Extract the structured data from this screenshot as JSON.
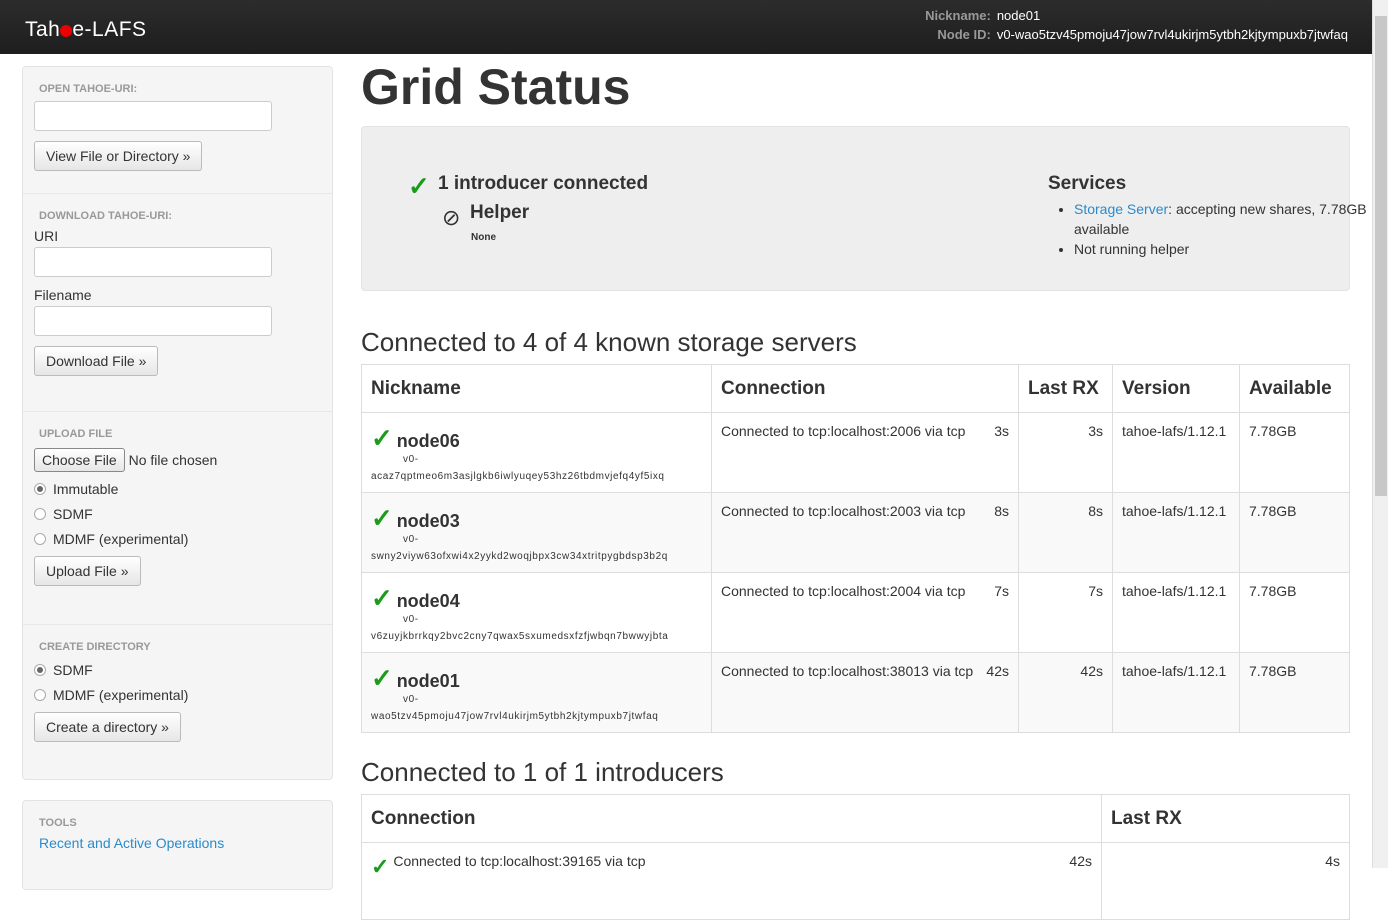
{
  "header": {
    "logo": "Tahoe-LAFS",
    "nickname_label": "Nickname:",
    "nickname": "node01",
    "nodeid_label": "Node ID:",
    "nodeid": "v0-wao5tzv45pmoju47jow7rvl4ukirjm5ytbh2kjtympuxb7jtwfaq"
  },
  "sidebar": {
    "open": {
      "header": "Open Tahoe-URI:",
      "button": "View File or Directory »"
    },
    "download": {
      "header": "Download Tahoe-URI:",
      "uri_label": "URI",
      "filename_label": "Filename",
      "button": "Download File »"
    },
    "upload": {
      "header": "Upload File",
      "choose": "Choose File",
      "no_file": "No file chosen",
      "options": [
        "Immutable",
        "SDMF",
        "MDMF (experimental)"
      ],
      "button": "Upload File »"
    },
    "mkdir": {
      "header": "Create Directory",
      "options": [
        "SDMF",
        "MDMF (experimental)"
      ],
      "button": "Create a directory »"
    },
    "tools": {
      "header": "Tools",
      "link": "Recent and Active Operations"
    }
  },
  "main": {
    "title": "Grid Status",
    "introducer_status": "1 introducer connected",
    "helper_title": "Helper",
    "helper_value": "None",
    "services_title": "Services",
    "services": {
      "storage_link": "Storage Server",
      "storage_text": ": accepting new shares, 7.78GB available",
      "helper": "Not running helper"
    },
    "servers_heading": "Connected to 4 of 4 known storage servers",
    "servers_columns": [
      "Nickname",
      "Connection",
      "Last RX",
      "Version",
      "Available"
    ],
    "servers": [
      {
        "nickname": "node06",
        "id_prefix": "v0-",
        "id": "acaz7qptmeo6m3asjlgkb6iwlyuqey53hz26tbdmvjefq4yf5ixq",
        "connection": "Connected to tcp:localhost:2006 via tcp",
        "since": "3s",
        "last_rx": "3s",
        "version": "tahoe-lafs/1.12.1",
        "available": "7.78GB"
      },
      {
        "nickname": "node03",
        "id_prefix": "v0-",
        "id": "swny2viyw63ofxwi4x2yykd2woqjbpx3cw34xtritpygbdsp3b2q",
        "connection": "Connected to tcp:localhost:2003 via tcp",
        "since": "8s",
        "last_rx": "8s",
        "version": "tahoe-lafs/1.12.1",
        "available": "7.78GB"
      },
      {
        "nickname": "node04",
        "id_prefix": "v0-",
        "id": "v6zuyjkbrrkqy2bvc2cny7qwax5sxumedsxfzfjwbqn7bwwyjbta",
        "connection": "Connected to tcp:localhost:2004 via tcp",
        "since": "7s",
        "last_rx": "7s",
        "version": "tahoe-lafs/1.12.1",
        "available": "7.78GB"
      },
      {
        "nickname": "node01",
        "id_prefix": "v0-",
        "id": "wao5tzv45pmoju47jow7rvl4ukirjm5ytbh2kjtympuxb7jtwfaq",
        "connection": "Connected to tcp:localhost:38013 via tcp",
        "since": "42s",
        "last_rx": "42s",
        "version": "tahoe-lafs/1.12.1",
        "available": "7.78GB"
      }
    ],
    "introducers_heading": "Connected to 1 of 1 introducers",
    "introducers_columns": [
      "Connection",
      "Last RX"
    ],
    "introducers": [
      {
        "connection": "Connected to tcp:localhost:39165 via tcp",
        "since": "42s",
        "last_rx": "4s"
      }
    ]
  },
  "colors": {
    "check": "#1a9b1a",
    "link": "#2a8bcc",
    "navbar": "#222222"
  }
}
